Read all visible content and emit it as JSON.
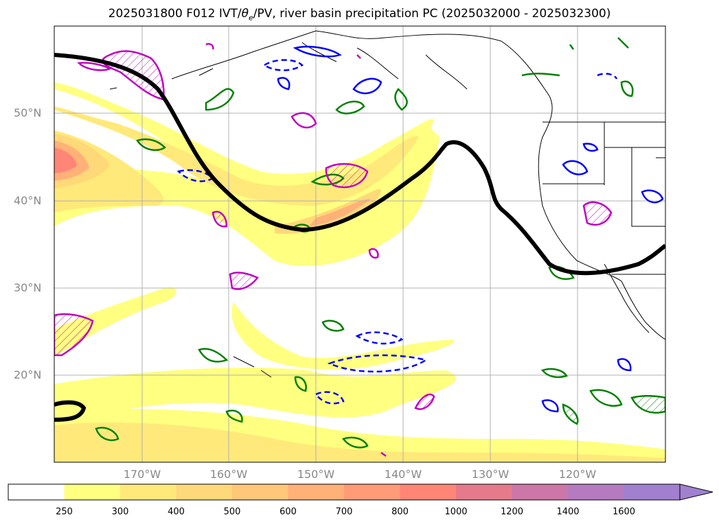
{
  "title": {
    "prefix": "2025031800 F012 IVT/",
    "theta": "θ",
    "theta_sub": "e",
    "suffix": "/PV, river basin precipitation PC (2025032000 - 2025032300)"
  },
  "map": {
    "lat_labels": [
      "50°N",
      "40°N",
      "30°N",
      "20°N"
    ],
    "lon_labels": [
      "170°W",
      "160°W",
      "150°W",
      "140°W",
      "130°W",
      "120°W"
    ],
    "colors": {
      "jet": "#000000",
      "pv_solid": "#0000ff",
      "theta_e": "#008000",
      "precip": "#c000c0",
      "coast": "#000000"
    }
  },
  "colorbar": {
    "levels": [
      "250",
      "300",
      "400",
      "500",
      "600",
      "700",
      "800",
      "1000",
      "1200",
      "1400",
      "1600"
    ],
    "colors": [
      "#ffffff",
      "#ffff80",
      "#ffe97a",
      "#ffd879",
      "#ffc778",
      "#ffb177",
      "#ff9b76",
      "#ff8576",
      "#e47a8a",
      "#cc77a8",
      "#b57ac0",
      "#a280d0"
    ],
    "extend": "max"
  }
}
